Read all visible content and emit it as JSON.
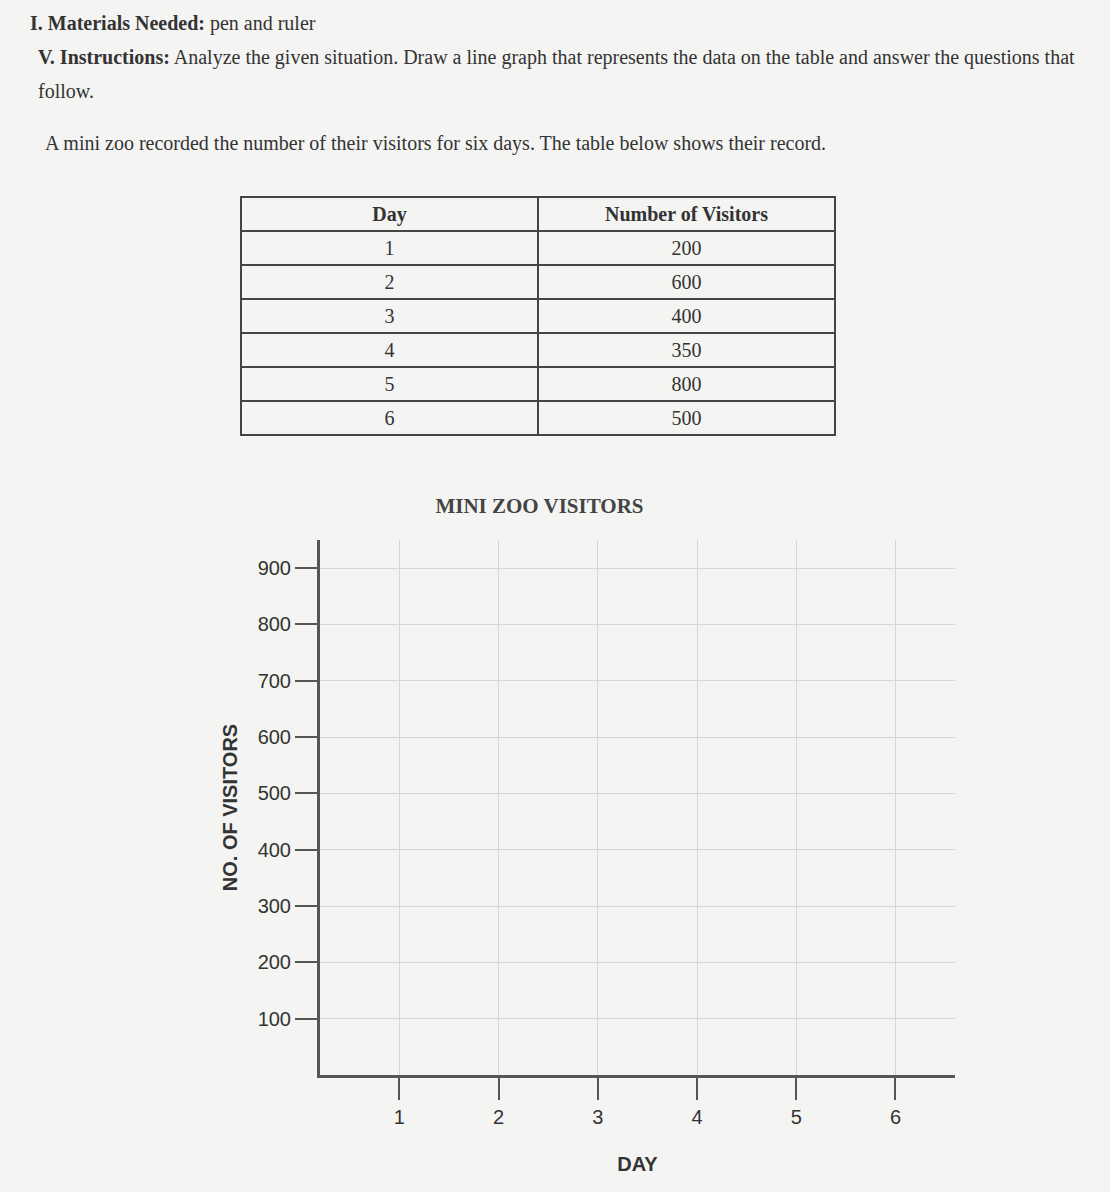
{
  "header": {
    "materials": {
      "label": "I. Materials Needed:",
      "text": "pen and ruler"
    },
    "instructions": {
      "label": "V. Instructions:",
      "text": "Analyze the given situation. Draw a line graph that represents the data on the table and answer the questions that follow."
    }
  },
  "situation": "A mini zoo recorded the number of their visitors for six days. The table below shows their record.",
  "table": {
    "columns": [
      "Day",
      "Number of Visitors"
    ],
    "rows": [
      [
        1,
        200
      ],
      [
        2,
        600
      ],
      [
        3,
        400
      ],
      [
        4,
        350
      ],
      [
        5,
        800
      ],
      [
        6,
        500
      ]
    ]
  },
  "chart_data": {
    "type": "line",
    "title": "MINI ZOO VISITORS",
    "x_label": "DAY",
    "y_label": "NO. OF VISITORS",
    "xlim": [
      0.2,
      6.6
    ],
    "xticks": [
      1,
      2,
      3,
      4,
      5,
      6
    ],
    "ylim": [
      0,
      950
    ],
    "yticks": [
      100,
      200,
      300,
      400,
      500,
      600,
      700,
      800,
      900
    ],
    "grid": true
  }
}
